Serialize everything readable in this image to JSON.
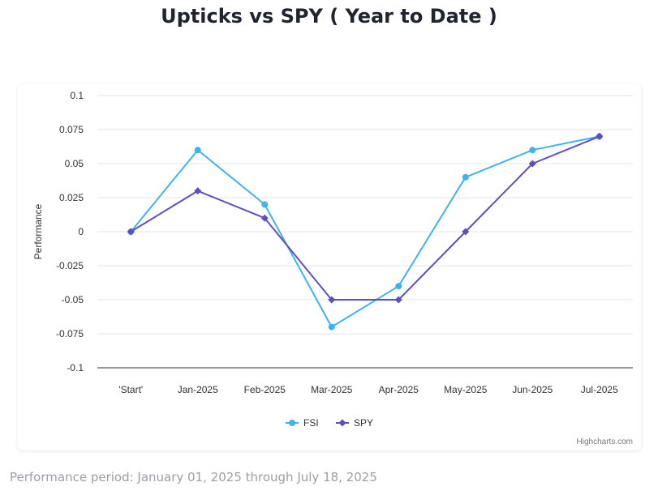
{
  "page": {
    "title": "Upticks vs SPY ( Year to Date )",
    "footer": "Performance period: January 01, 2025 through July 18, 2025",
    "credits": "Highcharts.com"
  },
  "chart_data": {
    "type": "line",
    "title": "Upticks vs SPY ( Year to Date )",
    "xlabel": "",
    "ylabel": "Performance",
    "categories": [
      "'Start'",
      "Jan-2025",
      "Feb-2025",
      "Mar-2025",
      "Apr-2025",
      "May-2025",
      "Jun-2025",
      "Jul-2025"
    ],
    "ylim": [
      -0.1,
      0.1
    ],
    "yticks": [
      0.1,
      0.075,
      0.05,
      0.025,
      0,
      -0.025,
      -0.05,
      -0.075,
      -0.1
    ],
    "ytick_labels": [
      "0.1",
      "0.075",
      "0.05",
      "0.025",
      "0",
      "-0.025",
      "-0.05",
      "-0.075",
      "-0.1"
    ],
    "grid": true,
    "legend": "bottom-center",
    "series": [
      {
        "name": "FSI",
        "marker": "circle",
        "color": "#3fb3ee",
        "values": [
          0,
          0.06,
          0.02,
          -0.07,
          -0.04,
          0.04,
          0.06,
          0.07
        ]
      },
      {
        "name": "SPY",
        "marker": "diamond",
        "color": "#5b4fc4",
        "values": [
          0,
          0.03,
          0.01,
          -0.05,
          -0.05,
          0,
          0.05,
          0.07
        ]
      }
    ]
  }
}
